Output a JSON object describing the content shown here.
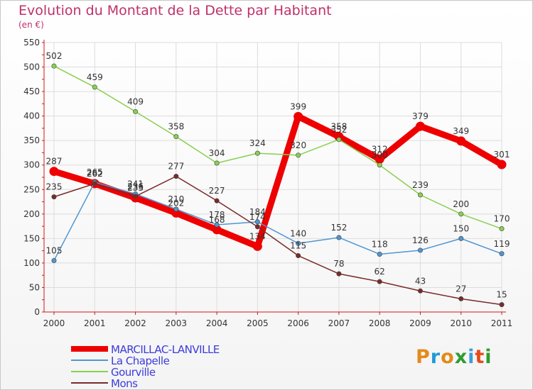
{
  "title": "Evolution du Montant de la Dette par Habitant",
  "subtitle": "(en €)",
  "logo_text": "Proxiti",
  "colors": {
    "title": "#c0306a",
    "axis": "#d01818",
    "grid": "#dcdcdc",
    "legend_text": "#3c3cdc",
    "value_label": "#333333"
  },
  "logo_colors": [
    "#e48a1a",
    "#1f9ad6",
    "#e48a1a",
    "#2f9c2f",
    "#3aa0d8",
    "#e84a1a",
    "#2f9c2f"
  ],
  "chart_data": {
    "type": "line",
    "x": [
      "2000",
      "2001",
      "2002",
      "2003",
      "2004",
      "2005",
      "2006",
      "2007",
      "2008",
      "2009",
      "2010",
      "2011"
    ],
    "ylim": [
      0,
      550
    ],
    "yticks": [
      "0",
      "50",
      "100",
      "150",
      "200",
      "250",
      "300",
      "350",
      "400",
      "450",
      "500",
      "550"
    ],
    "ytick_values": [
      0,
      50,
      100,
      150,
      200,
      250,
      300,
      350,
      400,
      450,
      500,
      550
    ],
    "grid": true,
    "legend_position": "bottom-left",
    "series": [
      {
        "name": "MARCILLAC-LANVILLE",
        "color": "#ee0000",
        "values": [
          287,
          262,
          233,
          202,
          168,
          134,
          399,
          358,
          312,
          379,
          349,
          301
        ],
        "labels": [
          "287",
          "262",
          "233",
          "202",
          "168",
          "134",
          "399",
          "358",
          "312",
          "379",
          "349",
          "301"
        ],
        "width": 9
      },
      {
        "name": "La Chapelle",
        "color": "#5096d2",
        "values": [
          105,
          265,
          241,
          210,
          178,
          184,
          140,
          152,
          118,
          126,
          150,
          119
        ],
        "labels": [
          "105",
          "265",
          "241",
          "210",
          "178",
          "184",
          "140",
          "152",
          "118",
          "126",
          "150",
          "119"
        ],
        "width": 1.5
      },
      {
        "name": "Gourville",
        "color": "#88d050",
        "values": [
          502,
          459,
          409,
          358,
          304,
          324,
          320,
          352,
          300,
          239,
          200,
          170
        ],
        "labels": [
          "502",
          "459",
          "409",
          "358",
          "304",
          "324",
          "320",
          "352",
          "300",
          "239",
          "200",
          "170"
        ],
        "width": 1.5
      },
      {
        "name": "Mons",
        "color": "#7a2a2a",
        "values": [
          235,
          262,
          236,
          277,
          227,
          174,
          115,
          78,
          62,
          43,
          27,
          15
        ],
        "labels": [
          "235",
          "262",
          "236",
          "277",
          "227",
          "174",
          "115",
          "78",
          "62",
          "43",
          "27",
          "15"
        ],
        "width": 1.5
      }
    ]
  }
}
